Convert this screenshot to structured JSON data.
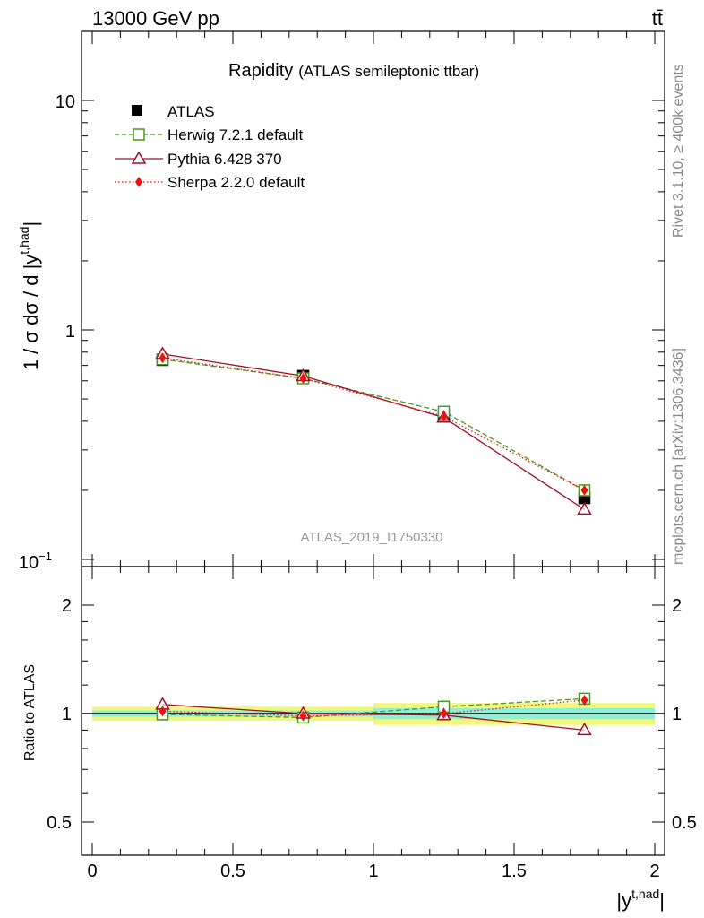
{
  "header": {
    "energy_label": "13000 GeV pp",
    "process_label": "tt̄"
  },
  "side_labels": {
    "rivet": "Rivet 3.1.10, ≥ 400k events",
    "mcplots": "mcplots.cern.ch [arXiv:1306.3436]"
  },
  "colors": {
    "atlas": "#000000",
    "herwig": "#4a9a1f",
    "pythia": "#a0102a",
    "sherpa": "#ee1111",
    "band_inner": "#8ff0d8",
    "band_outer": "#f2f77a"
  },
  "chart_data": [
    {
      "type": "line",
      "title": "Rapidity",
      "subtitle": "(ATLAS semileptonic ttbar)",
      "ylabel": "1 / σ dσ / d |y",
      "ylabel_sup": "t,had",
      "ylabel_end": "|",
      "yscale": "log",
      "ylim": [
        0.1,
        20
      ],
      "xlim": [
        -0.05,
        2.05
      ],
      "ytick_labels": {
        "major_10": "10",
        "major_1": "1",
        "base": "10",
        "exp": "−1"
      },
      "watermark": "ATLAS_2019_I1750330",
      "legend_position": "top-left",
      "x": [
        0.25,
        0.75,
        1.25,
        1.75
      ],
      "series": [
        {
          "name": "ATLAS",
          "values": [
            0.74,
            0.63,
            0.42,
            0.185
          ],
          "marker": "filled-square"
        },
        {
          "name": "Herwig 7.2.1 default",
          "values": [
            0.745,
            0.615,
            0.44,
            0.2
          ],
          "marker": "open-square",
          "style": "dashed"
        },
        {
          "name": "Pythia 6.428 370",
          "values": [
            0.785,
            0.63,
            0.415,
            0.165
          ],
          "marker": "open-triangle",
          "style": "solid"
        },
        {
          "name": "Sherpa 2.2.0 default",
          "values": [
            0.755,
            0.615,
            0.42,
            0.2
          ],
          "marker": "filled-diamond",
          "style": "dotted"
        }
      ]
    },
    {
      "type": "line",
      "title": "",
      "ylabel": "Ratio to ATLAS",
      "xlabel": "|y",
      "xlabel_sup": "t,had",
      "xlabel_end": "|",
      "ylim": [
        0.4,
        2.4
      ],
      "ytick_labels": [
        "0.5",
        "1",
        "2"
      ],
      "xtick_labels": [
        "0",
        "0.5",
        "1",
        "1.5",
        "2"
      ],
      "x": [
        0.25,
        0.75,
        1.25,
        1.75
      ],
      "bands": [
        {
          "x_range": [
            0,
            1
          ],
          "inner": 0.02,
          "outer": 0.045
        },
        {
          "x_range": [
            1,
            2
          ],
          "inner": 0.035,
          "outer": 0.07
        }
      ],
      "series": [
        {
          "name": "Herwig 7.2.1 default",
          "values": [
            0.995,
            0.975,
            1.045,
            1.1
          ]
        },
        {
          "name": "Pythia 6.428 370",
          "values": [
            1.06,
            1.0,
            0.99,
            0.9
          ]
        },
        {
          "name": "Sherpa 2.2.0 default",
          "values": [
            1.015,
            0.985,
            1.0,
            1.09
          ]
        }
      ]
    }
  ]
}
